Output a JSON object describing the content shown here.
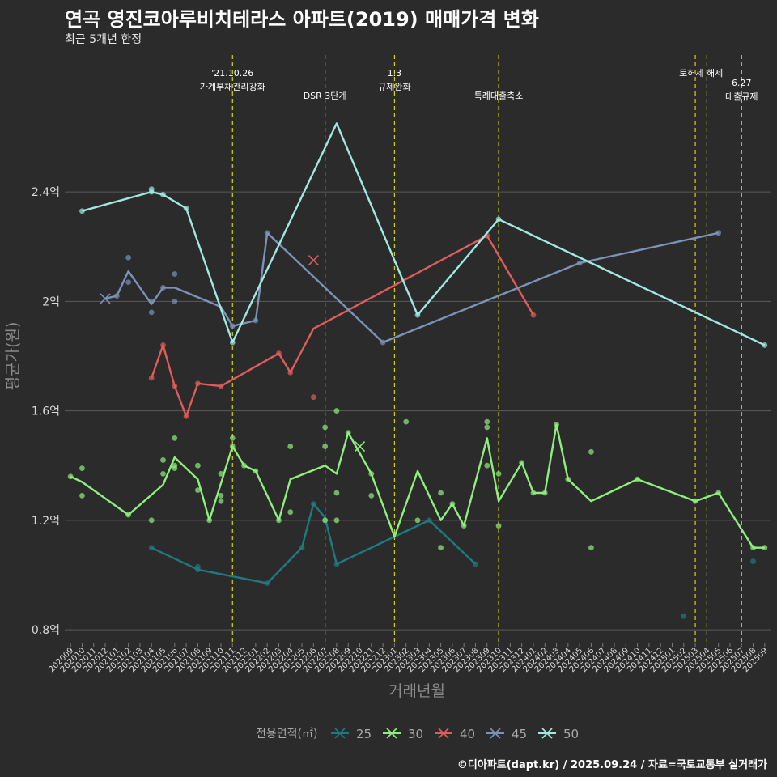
{
  "chart_data": {
    "type": "line",
    "title": "연곡 영진코아루비치테라스 아파트(2019) 매매가격 변화",
    "subtitle": "최근 5개년 한정",
    "caption": "©디아파트(dapt.kr) / 2025.09.24 / 자료=국토교통부 실거래가",
    "xlabel": "거래년월",
    "ylabel": "평균가(원)",
    "ylim": [
      0.75,
      2.9
    ],
    "yticks": [
      {
        "value": 0.8,
        "label": "0.8억"
      },
      {
        "value": 1.2,
        "label": "1.2억"
      },
      {
        "value": 1.6,
        "label": "1.6억"
      },
      {
        "value": 2.0,
        "label": "2억"
      },
      {
        "value": 2.4,
        "label": "2.4억"
      }
    ],
    "categories": [
      "202009",
      "202010",
      "202011",
      "202012",
      "202101",
      "202102",
      "202103",
      "202104",
      "202105",
      "202106",
      "202107",
      "202108",
      "202109",
      "202110",
      "202111",
      "202112",
      "202201",
      "202202",
      "202203",
      "202204",
      "202205",
      "202206",
      "202207",
      "202208",
      "202209",
      "202210",
      "202211",
      "202212",
      "202301",
      "202302",
      "202303",
      "202304",
      "202305",
      "202306",
      "202307",
      "202308",
      "202309",
      "202310",
      "202311",
      "202312",
      "202401",
      "202402",
      "202403",
      "202404",
      "202405",
      "202406",
      "202407",
      "202408",
      "202409",
      "202410",
      "202411",
      "202412",
      "202501",
      "202502",
      "202503",
      "202504",
      "202505",
      "202506",
      "202507",
      "202508",
      "202509"
    ],
    "legend": {
      "title": "전용면적(㎡)",
      "position": "bottom"
    },
    "grid": true,
    "series": [
      {
        "name": "25",
        "color": "#1f7a80",
        "line": [
          [
            "202104",
            1.1
          ],
          [
            "202108",
            1.02
          ],
          [
            "202202",
            0.97
          ],
          [
            "202205",
            1.1
          ],
          [
            "202206",
            1.26
          ],
          [
            "202207",
            1.21
          ],
          [
            "202208",
            1.04
          ],
          [
            "202304",
            1.2
          ],
          [
            "202308",
            1.04
          ]
        ],
        "points": [
          [
            "202104",
            1.1
          ],
          [
            "202108",
            1.03
          ],
          [
            "202108",
            1.02
          ],
          [
            "202202",
            0.97
          ],
          [
            "202205",
            1.1
          ],
          [
            "202206",
            1.26
          ],
          [
            "202207",
            1.2
          ],
          [
            "202208",
            1.04
          ],
          [
            "202304",
            1.2
          ],
          [
            "202308",
            1.04
          ],
          [
            "202502",
            0.85
          ],
          [
            "202508",
            1.05
          ]
        ]
      },
      {
        "name": "30",
        "color": "#90ee7e",
        "line": [
          [
            "202009",
            1.36
          ],
          [
            "202010",
            1.34
          ],
          [
            "202102",
            1.22
          ],
          [
            "202105",
            1.33
          ],
          [
            "202106",
            1.43
          ],
          [
            "202108",
            1.35
          ],
          [
            "202109",
            1.2
          ],
          [
            "202111",
            1.47
          ],
          [
            "202112",
            1.4
          ],
          [
            "202201",
            1.38
          ],
          [
            "202203",
            1.2
          ],
          [
            "202204",
            1.35
          ],
          [
            "202207",
            1.4
          ],
          [
            "202208",
            1.37
          ],
          [
            "202209",
            1.52
          ],
          [
            "202211",
            1.37
          ],
          [
            "202301",
            1.14
          ],
          [
            "202303",
            1.38
          ],
          [
            "202305",
            1.2
          ],
          [
            "202306",
            1.26
          ],
          [
            "202307",
            1.18
          ],
          [
            "202309",
            1.5
          ],
          [
            "202310",
            1.27
          ],
          [
            "202312",
            1.41
          ],
          [
            "202401",
            1.3
          ],
          [
            "202402",
            1.3
          ],
          [
            "202403",
            1.55
          ],
          [
            "202404",
            1.35
          ],
          [
            "202406",
            1.27
          ],
          [
            "202410",
            1.35
          ],
          [
            "202503",
            1.27
          ],
          [
            "202505",
            1.3
          ],
          [
            "202508",
            1.1
          ],
          [
            "202509",
            1.1
          ]
        ],
        "points": [
          [
            "202009",
            1.36
          ],
          [
            "202010",
            1.39
          ],
          [
            "202010",
            1.29
          ],
          [
            "202102",
            1.22
          ],
          [
            "202104",
            1.2
          ],
          [
            "202105",
            1.42
          ],
          [
            "202105",
            1.37
          ],
          [
            "202106",
            1.5
          ],
          [
            "202106",
            1.4
          ],
          [
            "202106",
            1.39
          ],
          [
            "202108",
            1.4
          ],
          [
            "202108",
            1.31
          ],
          [
            "202109",
            1.2
          ],
          [
            "202110",
            1.37
          ],
          [
            "202110",
            1.29
          ],
          [
            "202110",
            1.27
          ],
          [
            "202111",
            1.5
          ],
          [
            "202111",
            1.47
          ],
          [
            "202112",
            1.4
          ],
          [
            "202201",
            1.38
          ],
          [
            "202203",
            1.2
          ],
          [
            "202204",
            1.47
          ],
          [
            "202204",
            1.23
          ],
          [
            "202207",
            1.54
          ],
          [
            "202207",
            1.47
          ],
          [
            "202207",
            1.2
          ],
          [
            "202208",
            1.6
          ],
          [
            "202208",
            1.3
          ],
          [
            "202208",
            1.2
          ],
          [
            "202209",
            1.52
          ],
          [
            "202211",
            1.29
          ],
          [
            "202211",
            1.37
          ],
          [
            "202302",
            1.56
          ],
          [
            "202303",
            1.2
          ],
          [
            "202305",
            1.3
          ],
          [
            "202305",
            1.1
          ],
          [
            "202306",
            1.26
          ],
          [
            "202307",
            1.18
          ],
          [
            "202309",
            1.56
          ],
          [
            "202309",
            1.54
          ],
          [
            "202309",
            1.4
          ],
          [
            "202310",
            1.37
          ],
          [
            "202310",
            1.18
          ],
          [
            "202312",
            1.41
          ],
          [
            "202401",
            1.3
          ],
          [
            "202402",
            1.3
          ],
          [
            "202403",
            1.55
          ],
          [
            "202404",
            1.35
          ],
          [
            "202406",
            1.45
          ],
          [
            "202406",
            1.1
          ],
          [
            "202410",
            1.35
          ],
          [
            "202503",
            1.27
          ],
          [
            "202505",
            1.3
          ],
          [
            "202508",
            1.1
          ],
          [
            "202509",
            1.1
          ]
        ],
        "crosses": [
          [
            "202210",
            1.47
          ]
        ]
      },
      {
        "name": "40",
        "color": "#e05c5c",
        "line": [
          [
            "202104",
            1.72
          ],
          [
            "202105",
            1.84
          ],
          [
            "202106",
            1.69
          ],
          [
            "202107",
            1.58
          ],
          [
            "202108",
            1.7
          ],
          [
            "202110",
            1.69
          ],
          [
            "202203",
            1.81
          ],
          [
            "202204",
            1.74
          ],
          [
            "202206",
            1.9
          ],
          [
            "202309",
            2.24
          ],
          [
            "202401",
            1.95
          ]
        ],
        "points": [
          [
            "202104",
            1.72
          ],
          [
            "202105",
            1.84
          ],
          [
            "202106",
            1.69
          ],
          [
            "202107",
            1.58
          ],
          [
            "202108",
            1.7
          ],
          [
            "202110",
            1.69
          ],
          [
            "202203",
            1.81
          ],
          [
            "202204",
            1.74
          ],
          [
            "202206",
            1.65
          ],
          [
            "202309",
            2.24
          ],
          [
            "202401",
            1.95
          ]
        ],
        "crosses": [
          [
            "202206",
            2.15
          ]
        ]
      },
      {
        "name": "45",
        "color": "#7b93b8",
        "line": [
          [
            "202012",
            2.01
          ],
          [
            "202101",
            2.02
          ],
          [
            "202102",
            2.11
          ],
          [
            "202104",
            1.99
          ],
          [
            "202105",
            2.05
          ],
          [
            "202106",
            2.05
          ],
          [
            "202110",
            1.98
          ],
          [
            "202111",
            1.91
          ],
          [
            "202201",
            1.93
          ],
          [
            "202202",
            2.25
          ],
          [
            "202212",
            1.85
          ],
          [
            "202405",
            2.14
          ],
          [
            "202505",
            2.25
          ]
        ],
        "points": [
          [
            "202101",
            2.02
          ],
          [
            "202102",
            2.16
          ],
          [
            "202102",
            2.07
          ],
          [
            "202104",
            2.0
          ],
          [
            "202104",
            1.96
          ],
          [
            "202105",
            2.05
          ],
          [
            "202106",
            2.1
          ],
          [
            "202106",
            2.0
          ],
          [
            "202111",
            1.91
          ],
          [
            "202201",
            1.93
          ],
          [
            "202202",
            2.25
          ],
          [
            "202212",
            1.85
          ],
          [
            "202405",
            2.14
          ],
          [
            "202505",
            2.25
          ]
        ],
        "crosses": [
          [
            "202012",
            2.01
          ]
        ]
      },
      {
        "name": "50",
        "color": "#a0e8e0",
        "line": [
          [
            "202010",
            2.33
          ],
          [
            "202104",
            2.4
          ],
          [
            "202105",
            2.39
          ],
          [
            "202107",
            2.34
          ],
          [
            "202111",
            1.85
          ],
          [
            "202208",
            2.65
          ],
          [
            "202303",
            1.95
          ],
          [
            "202310",
            2.3
          ],
          [
            "202509",
            1.84
          ]
        ],
        "points": [
          [
            "202010",
            2.33
          ],
          [
            "202104",
            2.41
          ],
          [
            "202104",
            2.4
          ],
          [
            "202105",
            2.39
          ],
          [
            "202107",
            2.34
          ],
          [
            "202111",
            1.85
          ],
          [
            "202303",
            1.95
          ],
          [
            "202310",
            2.3
          ],
          [
            "202509",
            1.84
          ]
        ]
      }
    ],
    "annotations": [
      {
        "x": "202111",
        "lines": [
          "'21.10.26",
          "가계부채관리강화"
        ],
        "row": 0
      },
      {
        "x": "202207",
        "lines": [
          "DSR 3단계"
        ],
        "row": 1
      },
      {
        "x": "202301",
        "lines": [
          "1.3",
          "규제완화"
        ],
        "row": 0
      },
      {
        "x": "202310",
        "lines": [
          "특례대출축소"
        ],
        "row": 1
      },
      {
        "x": "202503",
        "lines": [
          "토허제 해제"
        ],
        "row": 0,
        "pair": "202504"
      },
      {
        "x": "202507",
        "lines": [
          "6.27",
          "대출규제"
        ],
        "row": 1
      }
    ],
    "vlines": [
      "202111",
      "202207",
      "202301",
      "202310",
      "202503",
      "202504",
      "202507"
    ]
  }
}
